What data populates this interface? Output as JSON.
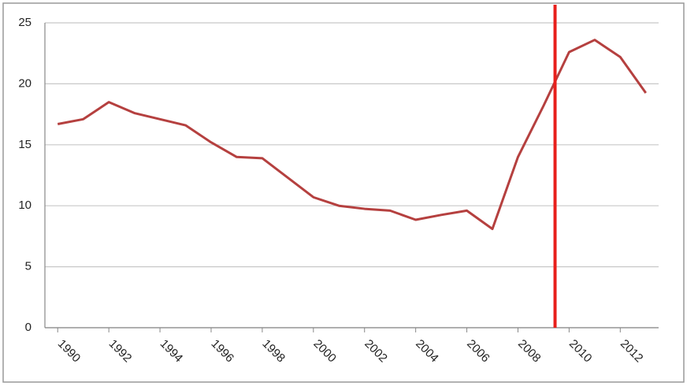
{
  "chart_data": {
    "type": "line",
    "x": [
      1990,
      1991,
      1992,
      1993,
      1994,
      1995,
      1996,
      1997,
      1998,
      1999,
      2000,
      2001,
      2002,
      2003,
      2004,
      2005,
      2006,
      2007,
      2008,
      2009,
      2010,
      2011,
      2012,
      2013
    ],
    "series": [
      {
        "color": "#b5403f",
        "values": [
          16.7,
          17.1,
          18.5,
          17.6,
          17.1,
          16.6,
          15.2,
          14.0,
          13.9,
          12.3,
          10.7,
          10.0,
          9.75,
          9.6,
          8.85,
          9.25,
          9.6,
          8.1,
          14.0,
          18.2,
          22.6,
          23.6,
          22.2,
          19.25
        ]
      }
    ],
    "xlim": [
      1989.5,
      2013.5
    ],
    "xticks": [
      1990,
      1992,
      1994,
      1996,
      1998,
      2000,
      2002,
      2004,
      2006,
      2008,
      2010,
      2012
    ],
    "ylim": [
      0,
      25
    ],
    "yticks": [
      0,
      5,
      10,
      15,
      20,
      25
    ],
    "grid": true,
    "vline": {
      "x": 2009.45,
      "color": "#e8201c"
    }
  }
}
